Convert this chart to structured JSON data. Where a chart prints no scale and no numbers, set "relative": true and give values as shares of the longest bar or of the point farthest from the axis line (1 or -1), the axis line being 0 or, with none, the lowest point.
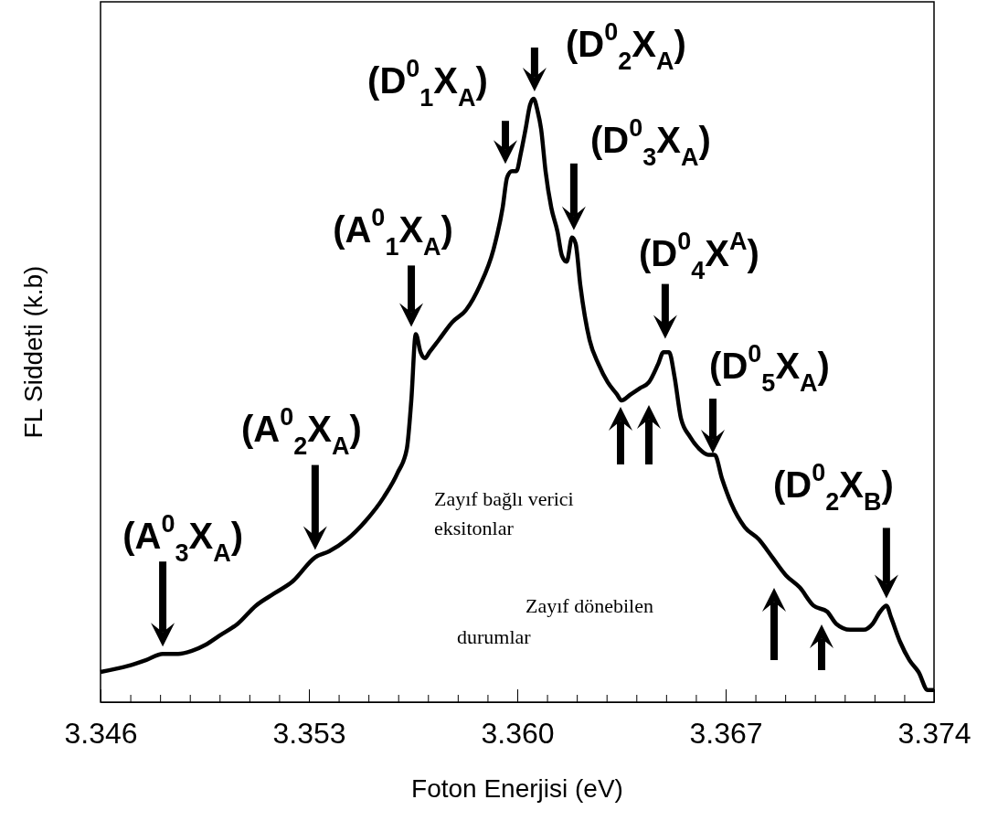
{
  "chart_data": {
    "type": "line",
    "relative": true,
    "xlabel": "Foton Enerjisi (eV)",
    "ylabel": "FL Siddeti (k.b)",
    "xlim": [
      3.346,
      3.374
    ],
    "xticks": [
      3.346,
      {
        "value": 3.347,
        "label": null
      },
      {
        "value": 3.348,
        "label": null
      },
      {
        "value": 3.349,
        "label": null
      },
      {
        "value": 3.35,
        "label": null
      },
      {
        "value": 3.351,
        "label": null
      },
      {
        "value": 3.352,
        "label": null
      },
      {
        "value": 3.353,
        "label": "3.353"
      },
      {
        "value": 3.354,
        "label": null
      },
      {
        "value": 3.355,
        "label": null
      },
      {
        "value": 3.356,
        "label": null
      },
      {
        "value": 3.357,
        "label": null
      },
      {
        "value": 3.358,
        "label": null
      },
      {
        "value": 3.359,
        "label": null
      },
      {
        "value": 3.36,
        "label": "3.360"
      },
      {
        "value": 3.361,
        "label": null
      },
      {
        "value": 3.362,
        "label": null
      },
      {
        "value": 3.363,
        "label": null
      },
      {
        "value": 3.364,
        "label": null
      },
      {
        "value": 3.365,
        "label": null
      },
      {
        "value": 3.366,
        "label": null
      },
      {
        "value": 3.367,
        "label": "3.367"
      },
      {
        "value": 3.368,
        "label": null
      },
      {
        "value": 3.369,
        "label": null
      },
      {
        "value": 3.37,
        "label": null
      },
      {
        "value": 3.371,
        "label": null
      },
      {
        "value": 3.372,
        "label": null
      },
      {
        "value": 3.373,
        "label": null
      },
      3.374
    ],
    "marker": "none",
    "line_style": "solid",
    "series": [
      {
        "color": "#000000",
        "x": [
          3.346,
          3.34692,
          3.34754,
          3.34809,
          3.34861,
          3.34907,
          3.34953,
          3.34999,
          3.35061,
          3.35122,
          3.35183,
          3.35245,
          3.35321,
          3.35368,
          3.35429,
          3.3549,
          3.35552,
          3.35598,
          3.35629,
          3.35644,
          3.35659,
          3.35675,
          3.3569,
          3.35705,
          3.35736,
          3.35782,
          3.35828,
          3.35874,
          3.3592,
          3.35951,
          3.35966,
          3.35982,
          3.35997,
          3.36012,
          3.36028,
          3.36043,
          3.36055,
          3.36068,
          3.3608,
          3.36095,
          3.36114,
          3.36135,
          3.3615,
          3.36166,
          3.36184,
          3.36196,
          3.36212,
          3.36243,
          3.36273,
          3.36304,
          3.36335,
          3.3635,
          3.36381,
          3.36411,
          3.36442,
          3.36473,
          3.36491,
          3.3651,
          3.36528,
          3.3655,
          3.3658,
          3.36611,
          3.36642,
          3.36663,
          3.36688,
          3.36718,
          3.36764,
          3.36811,
          3.36857,
          3.36903,
          3.36949,
          3.36995,
          3.37041,
          3.37071,
          3.37118,
          3.37164,
          3.37194,
          3.37219,
          3.3724,
          3.37256,
          3.37286,
          3.37317,
          3.37348,
          3.37379,
          3.374
        ],
        "values": [
          0.05,
          0.06,
          0.07,
          0.08,
          0.08,
          0.085,
          0.095,
          0.11,
          0.13,
          0.16,
          0.18,
          0.2,
          0.24,
          0.25,
          0.27,
          0.3,
          0.34,
          0.38,
          0.42,
          0.5,
          0.61,
          0.58,
          0.57,
          0.58,
          0.6,
          0.63,
          0.65,
          0.69,
          0.75,
          0.82,
          0.87,
          0.88,
          0.88,
          0.91,
          0.95,
          0.99,
          1,
          0.98,
          0.95,
          0.88,
          0.82,
          0.78,
          0.74,
          0.73,
          0.77,
          0.76,
          0.69,
          0.6,
          0.56,
          0.53,
          0.51,
          0.5,
          0.51,
          0.52,
          0.53,
          0.56,
          0.58,
          0.58,
          0.54,
          0.47,
          0.44,
          0.42,
          0.41,
          0.41,
          0.37,
          0.33,
          0.29,
          0.27,
          0.24,
          0.21,
          0.19,
          0.16,
          0.15,
          0.13,
          0.12,
          0.12,
          0.13,
          0.15,
          0.16,
          0.14,
          0.1,
          0.07,
          0.05,
          0.02,
          0.02
        ]
      }
    ],
    "annotations": [
      {
        "text": "(A$^{0}$$_{3}$X$_{A}$)",
        "x": 3.34809,
        "y": 0.08
      },
      {
        "text": "(A$^{0}$$_{2}$X$_{A}$)",
        "x": 3.35321,
        "y": 0.24
      },
      {
        "text": "(A$^{0}$$_{1}$X$_{A}$)",
        "x": 3.35644,
        "y": 0.61
      },
      {
        "text": "(D$^{0}$$_{1}$X$_{A}$)",
        "x": 3.3596,
        "y": 0.88
      },
      {
        "text": "(D$^{0}$$_{2}$X$_{A}$)",
        "x": 3.36058,
        "y": 1
      },
      {
        "text": "(D$^{0}$$_{3}$X$_{A}$)",
        "x": 3.3619,
        "y": 0.77
      },
      {
        "text": "(D$^{0}$$_{4}$X$^{A}$)",
        "x": 3.36497,
        "y": 0.59
      },
      {
        "text": "(D$^{0}$$_{5}$X$_{A}$)",
        "x": 3.36657,
        "y": 0.4
      },
      {
        "text": "(D$^{0}$$_{2}$X$_{B}$)",
        "x": 3.3724,
        "y": 0.16
      },
      "Zayıf bağlı verici eksitonlar",
      "Zayıf dönebilen durumlar"
    ]
  }
}
